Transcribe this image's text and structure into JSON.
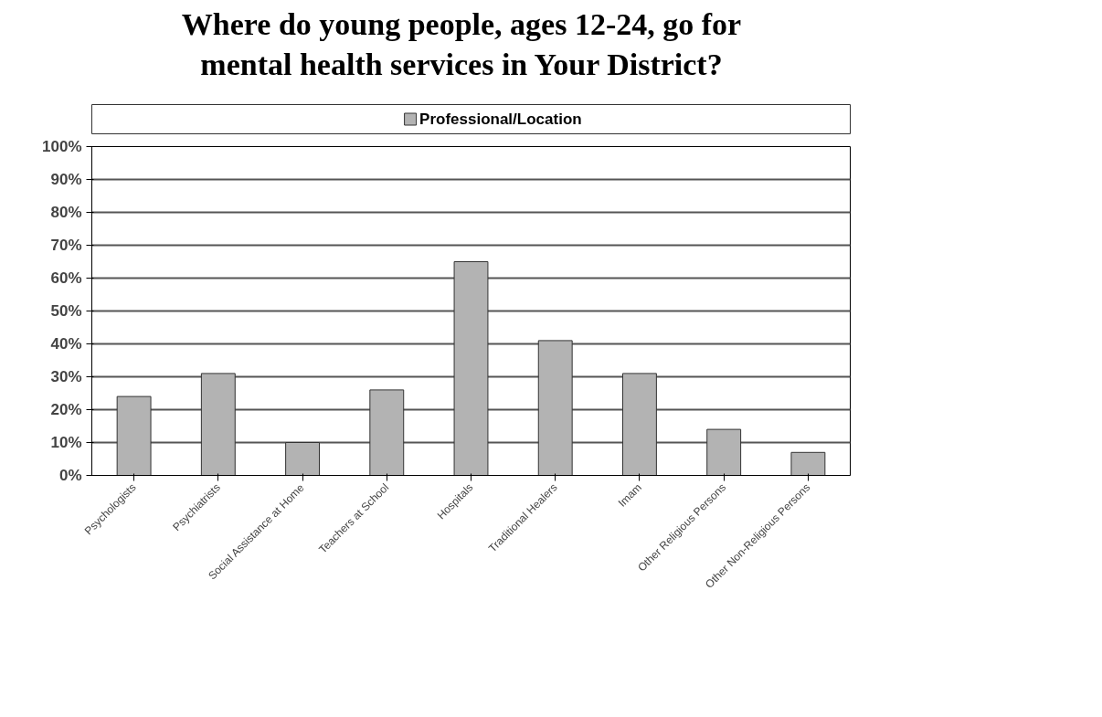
{
  "chart_data": {
    "type": "bar",
    "title": "Where do young people, ages 12-24, go for\nmental health services in Your District?",
    "categories": [
      "Psychologists",
      "Psychiatrists",
      "Social Assistance at Home",
      "Teachers at School",
      "Hospitals",
      "Traditional Healers",
      "Imam",
      "Other Religious Persons",
      "Other Non-Religious Persons"
    ],
    "series": [
      {
        "name": "Professional/Location",
        "color": "#b3b3b3",
        "values": [
          24,
          31,
          10,
          26,
          65,
          41,
          31,
          14,
          7
        ]
      }
    ],
    "ylim": [
      0,
      100
    ],
    "yticks": [
      {
        "value": 0,
        "label": "0%"
      },
      {
        "value": 10,
        "label": "10%"
      },
      {
        "value": 20,
        "label": "20%"
      },
      {
        "value": 30,
        "label": "30%"
      },
      {
        "value": 40,
        "label": "40%"
      },
      {
        "value": 50,
        "label": "50%"
      },
      {
        "value": 60,
        "label": "60%"
      },
      {
        "value": 70,
        "label": "70%"
      },
      {
        "value": 80,
        "label": "80%"
      },
      {
        "value": 90,
        "label": "90%"
      },
      {
        "value": 100,
        "label": "100%"
      }
    ],
    "grid": "y",
    "legend": "top"
  }
}
